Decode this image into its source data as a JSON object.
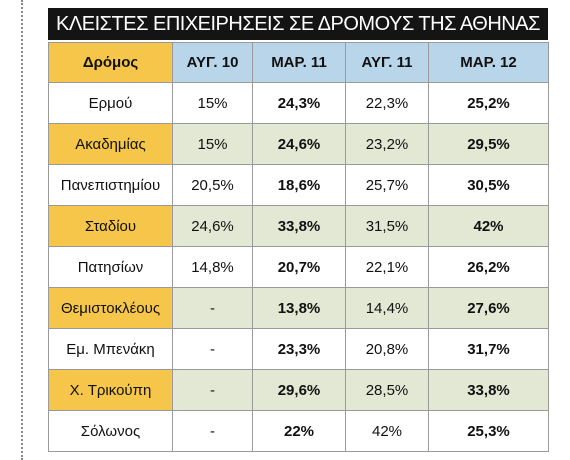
{
  "title": "ΚΛΕΙΣΤΕΣ ΕΠΙΧΕΙΡΗΣΕΙΣ ΣΕ ΔΡΟΜΟΥΣ ΤΗΣ ΑΘΗΝΑΣ",
  "table": {
    "header": [
      "Δρόμος",
      "ΑΥΓ. 10",
      "ΜΑΡ. 11",
      "ΑΥΓ. 11",
      "ΜΑΡ. 12"
    ],
    "rows": [
      [
        "Ερμού",
        "15%",
        "24,3%",
        "22,3%",
        "25,2%"
      ],
      [
        "Ακαδημίας",
        "15%",
        "24,6%",
        "23,2%",
        "29,5%"
      ],
      [
        "Πανεπιστημίου",
        "20,5%",
        "18,6%",
        "25,7%",
        "30,5%"
      ],
      [
        "Σταδίου",
        "24,6%",
        "33,8%",
        "31,5%",
        "42%"
      ],
      [
        "Πατησίων",
        "14,8%",
        "20,7%",
        "22,1%",
        "26,2%"
      ],
      [
        "Θεμιστοκλέους",
        "-",
        "13,8%",
        "14,4%",
        "27,6%"
      ],
      [
        "Εμ. Μπενάκη",
        "-",
        "23,3%",
        "20,8%",
        "31,7%"
      ],
      [
        "Χ. Τρικούπη",
        "-",
        "29,6%",
        "28,5%",
        "33,8%"
      ],
      [
        "Σόλωνος",
        "-",
        "22%",
        "42%",
        "25,3%"
      ]
    ]
  }
}
